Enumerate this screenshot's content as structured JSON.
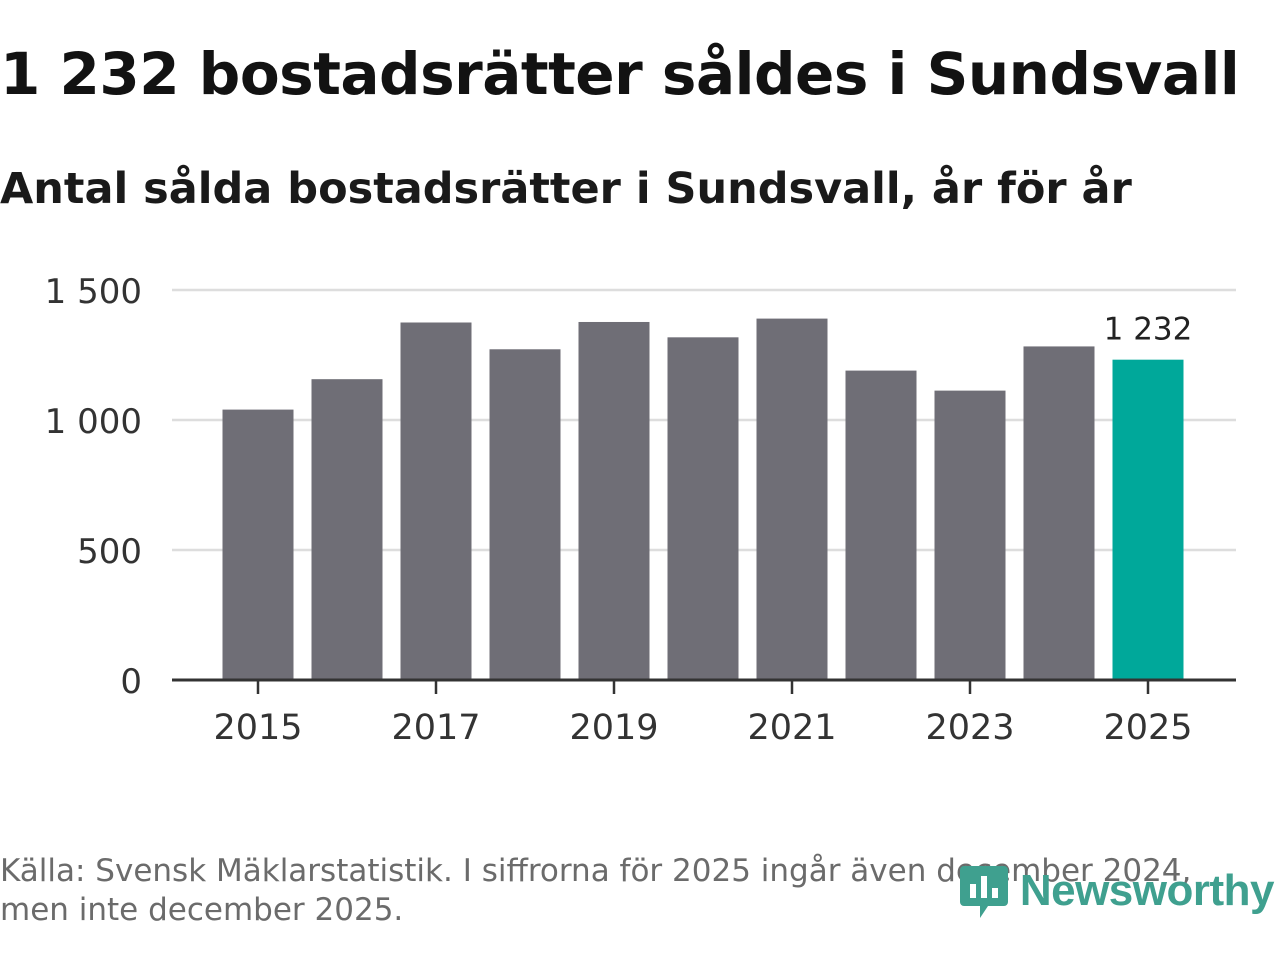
{
  "title": "1 232 bostadsrätter såldes i Sundsvall",
  "subtitle": "Antal sålda bostadsrätter i Sundsvall, år för år",
  "footer": {
    "line1": "Källa: Svensk Mäklarstatistik. I siffrorna för 2025 ingår även december 2024,",
    "line2": "men inte december 2025."
  },
  "brand": {
    "name": "Newsworthy",
    "icon": "newsworthy-logo-icon"
  },
  "colors": {
    "bar": "#6f6e76",
    "highlight": "#00a89a",
    "grid": "#dddddd",
    "axis": "#333333",
    "tick_text": "#333333"
  },
  "chart_data": {
    "type": "bar",
    "title": "Antal sålda bostadsrätter i Sundsvall, år för år",
    "xlabel": "",
    "ylabel": "",
    "categories": [
      "2015",
      "2016",
      "2017",
      "2018",
      "2019",
      "2020",
      "2021",
      "2022",
      "2023",
      "2024",
      "2025"
    ],
    "values": [
      1040,
      1157,
      1375,
      1272,
      1377,
      1318,
      1390,
      1190,
      1113,
      1283,
      1232
    ],
    "highlight_index": 10,
    "ylim": [
      0,
      1500
    ],
    "yticks": [
      0,
      500,
      1000,
      1500
    ],
    "ytick_labels": [
      "0",
      "500",
      "1 000",
      "1 500"
    ],
    "xtick_labels": [
      "2015",
      "2017",
      "2019",
      "2021",
      "2023",
      "2025"
    ],
    "annotations": [
      {
        "category": "2025",
        "text": "1 232"
      }
    ],
    "grid": true
  }
}
